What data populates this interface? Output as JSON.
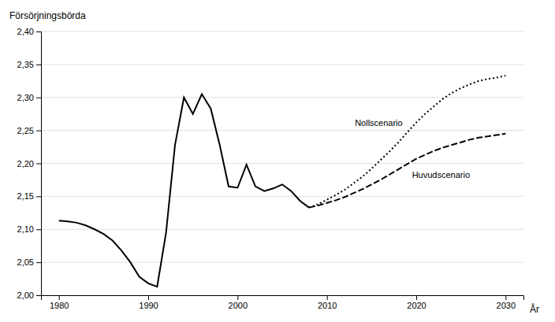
{
  "chart_data": {
    "type": "line",
    "ylabel": "Försörjningsbörda",
    "xlabel": "År",
    "xlim": [
      1978,
      2032
    ],
    "xticks": [
      1980,
      1990,
      2000,
      2010,
      2020,
      2030
    ],
    "ylim": [
      2.0,
      2.4
    ],
    "yticks": [
      {
        "value": 2.0,
        "label": "2,00"
      },
      {
        "value": 2.05,
        "label": "2,05"
      },
      {
        "value": 2.1,
        "label": "2,10"
      },
      {
        "value": 2.15,
        "label": "2,15"
      },
      {
        "value": 2.2,
        "label": "2,20"
      },
      {
        "value": 2.25,
        "label": "2,25"
      },
      {
        "value": 2.3,
        "label": "2,30"
      },
      {
        "value": 2.35,
        "label": "2,35"
      },
      {
        "value": 2.4,
        "label": "2,40"
      }
    ],
    "grid": true,
    "series": [
      {
        "color": "#000000",
        "line_style": "solid",
        "x": [
          1980,
          1981,
          1982,
          1983,
          1984,
          1985,
          1986,
          1987,
          1988,
          1989,
          1990,
          1991,
          1992,
          1993,
          1994,
          1995,
          1996,
          1997,
          1998,
          1999,
          2000,
          2001,
          2002,
          2003,
          2004,
          2005,
          2006,
          2007,
          2008
        ],
        "values": [
          2.113,
          2.112,
          2.11,
          2.106,
          2.1,
          2.093,
          2.083,
          2.068,
          2.05,
          2.028,
          2.018,
          2.013,
          2.095,
          2.228,
          2.3,
          2.275,
          2.305,
          2.283,
          2.228,
          2.165,
          2.163,
          2.198,
          2.165,
          2.158,
          2.162,
          2.168,
          2.158,
          2.143,
          2.133
        ]
      },
      {
        "name": "Nollscenario",
        "color": "#000000",
        "line_style": "dotted",
        "x": [
          2008,
          2009,
          2010,
          2011,
          2012,
          2013,
          2014,
          2015,
          2016,
          2017,
          2018,
          2019,
          2020,
          2021,
          2022,
          2023,
          2024,
          2025,
          2026,
          2027,
          2028,
          2029,
          2030
        ],
        "values": [
          2.133,
          2.138,
          2.145,
          2.152,
          2.16,
          2.17,
          2.18,
          2.192,
          2.205,
          2.218,
          2.232,
          2.247,
          2.262,
          2.275,
          2.287,
          2.298,
          2.307,
          2.314,
          2.32,
          2.325,
          2.328,
          2.33,
          2.333
        ]
      },
      {
        "name": "Huvudscenario",
        "color": "#000000",
        "line_style": "dashed",
        "x": [
          2008,
          2009,
          2010,
          2011,
          2012,
          2013,
          2014,
          2015,
          2016,
          2017,
          2018,
          2019,
          2020,
          2021,
          2022,
          2023,
          2024,
          2025,
          2026,
          2027,
          2028,
          2029,
          2030
        ],
        "values": [
          2.133,
          2.136,
          2.14,
          2.144,
          2.149,
          2.155,
          2.161,
          2.168,
          2.175,
          2.183,
          2.191,
          2.199,
          2.207,
          2.213,
          2.219,
          2.224,
          2.228,
          2.232,
          2.236,
          2.239,
          2.241,
          2.243,
          2.245
        ]
      }
    ]
  }
}
